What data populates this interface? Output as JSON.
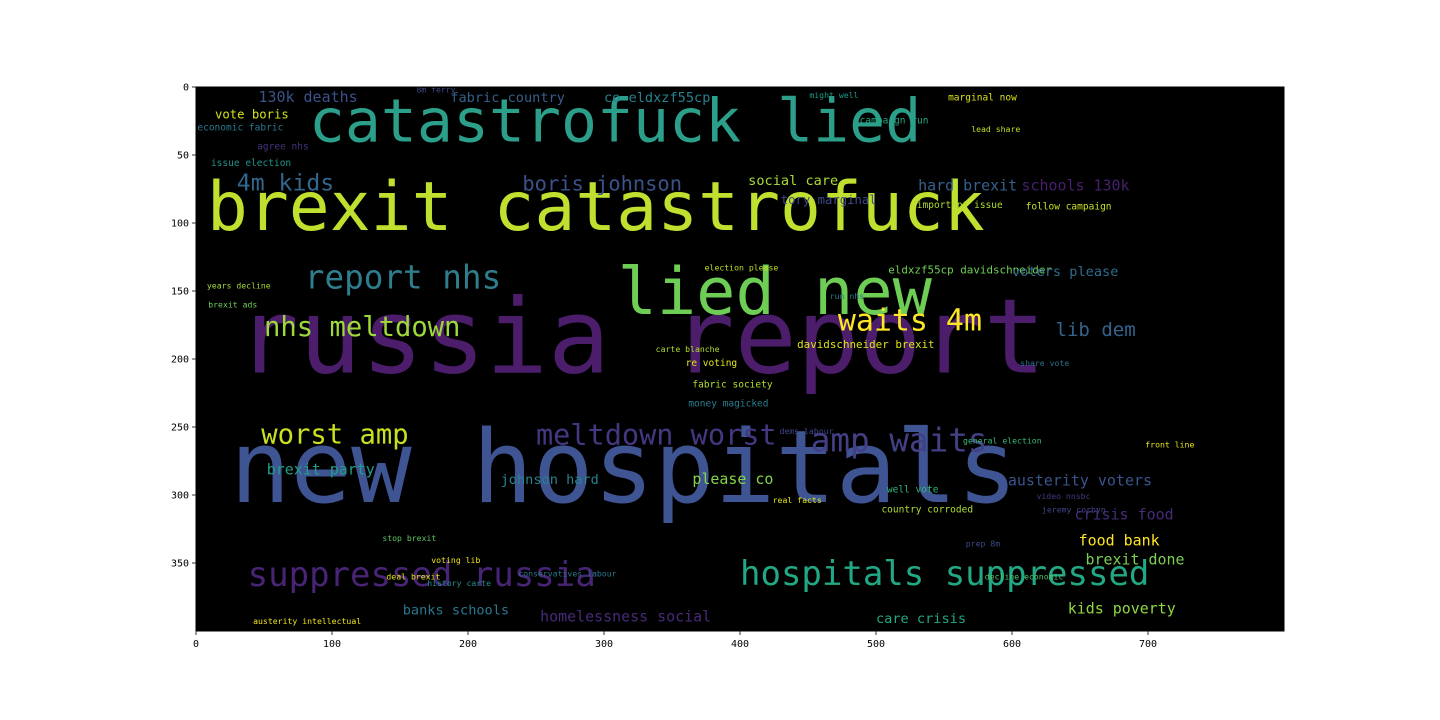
{
  "chart_data": {
    "type": "wordcloud",
    "title": "",
    "xlabel": "",
    "ylabel": "",
    "xlim": [
      0,
      800
    ],
    "ylim": [
      400,
      0
    ],
    "x_ticks": [
      0,
      100,
      200,
      300,
      400,
      500,
      600,
      700
    ],
    "y_ticks": [
      0,
      50,
      100,
      150,
      200,
      250,
      300,
      350
    ],
    "background": "#000000",
    "words": [
      {
        "text": "catastrofuck lied",
        "x": 83,
        "y": 40,
        "size": 44,
        "color": "#2c9f8b"
      },
      {
        "text": "brexit catastrofuck",
        "x": 8,
        "y": 105,
        "size": 50,
        "color": "#c0e02f"
      },
      {
        "text": "russia report",
        "x": 30,
        "y": 210,
        "size": 76,
        "color": "#4b1d6b"
      },
      {
        "text": "new hospitals",
        "x": 25,
        "y": 305,
        "size": 74,
        "color": "#3f5593"
      },
      {
        "text": "lied new",
        "x": 310,
        "y": 167,
        "size": 48,
        "color": "#6ecd55"
      },
      {
        "text": "4m kids",
        "x": 30,
        "y": 76,
        "size": 17,
        "color": "#31668d"
      },
      {
        "text": "report nhs",
        "x": 80,
        "y": 148,
        "size": 24,
        "color": "#2e7e8d"
      },
      {
        "text": "nhs meltdown",
        "x": 50,
        "y": 183,
        "size": 20,
        "color": "#9ed93a"
      },
      {
        "text": "waits 4m",
        "x": 472,
        "y": 179,
        "size": 22,
        "color": "#fde725"
      },
      {
        "text": "amp waits",
        "x": 452,
        "y": 268,
        "size": 24,
        "color": "#433f84"
      },
      {
        "text": "worst amp",
        "x": 48,
        "y": 262,
        "size": 20,
        "color": "#c9e020"
      },
      {
        "text": "meltdown worst",
        "x": 250,
        "y": 263,
        "size": 21,
        "color": "#453781"
      },
      {
        "text": "suppressed russia",
        "x": 38,
        "y": 367,
        "size": 25,
        "color": "#482475"
      },
      {
        "text": "hospitals suppressed",
        "x": 400,
        "y": 366,
        "size": 25,
        "color": "#22a884"
      },
      {
        "text": "boris johnson",
        "x": 240,
        "y": 76,
        "size": 15,
        "color": "#3b528b"
      },
      {
        "text": "hard brexit",
        "x": 531,
        "y": 76,
        "size": 11,
        "color": "#35608d"
      },
      {
        "text": "schools 130k",
        "x": 607,
        "y": 76,
        "size": 11,
        "color": "#481f70"
      },
      {
        "text": "social care",
        "x": 406,
        "y": 72,
        "size": 10,
        "color": "#a8db34"
      },
      {
        "text": "130k deaths",
        "x": 46,
        "y": 11,
        "size": 11,
        "color": "#3b528b"
      },
      {
        "text": "fabric country",
        "x": 187,
        "y": 11,
        "size": 10,
        "color": "#35608d"
      },
      {
        "text": "co eldxzf55cp",
        "x": 300,
        "y": 11,
        "size": 10,
        "color": "#26828e"
      },
      {
        "text": "vote boris",
        "x": 14,
        "y": 23,
        "size": 9,
        "color": "#d2e21b"
      },
      {
        "text": "economic fabric",
        "x": 1,
        "y": 32,
        "size": 7,
        "color": "#2a788e"
      },
      {
        "text": "issue election",
        "x": 11,
        "y": 58,
        "size": 7,
        "color": "#1f958b"
      },
      {
        "text": "agree nhs",
        "x": 45,
        "y": 46,
        "size": 7,
        "color": "#46327e"
      },
      {
        "text": "tory marginal",
        "x": 430,
        "y": 86,
        "size": 9,
        "color": "#3e4a89"
      },
      {
        "text": "important issue",
        "x": 530,
        "y": 89,
        "size": 7,
        "color": "#addc30"
      },
      {
        "text": "follow campaign",
        "x": 610,
        "y": 90,
        "size": 7,
        "color": "#c8e020"
      },
      {
        "text": "eldxzf55cp davidschneider",
        "x": 509,
        "y": 137,
        "size": 8,
        "color": "#70cf57"
      },
      {
        "text": "voters please",
        "x": 600,
        "y": 139,
        "size": 10,
        "color": "#2f6c8e"
      },
      {
        "text": "lib dem",
        "x": 632,
        "y": 183,
        "size": 14,
        "color": "#33638d"
      },
      {
        "text": "davidschneider brexit",
        "x": 442,
        "y": 192,
        "size": 8,
        "color": "#dde318"
      },
      {
        "text": "austerity voters",
        "x": 597,
        "y": 293,
        "size": 11,
        "color": "#3a548c"
      },
      {
        "text": "crisis food",
        "x": 646,
        "y": 318,
        "size": 11,
        "color": "#472c7a"
      },
      {
        "text": "food bank",
        "x": 649,
        "y": 337,
        "size": 11,
        "color": "#fde725"
      },
      {
        "text": "brexit done",
        "x": 654,
        "y": 351,
        "size": 11,
        "color": "#7ad151"
      },
      {
        "text": "kids poverty",
        "x": 641,
        "y": 387,
        "size": 11,
        "color": "#90d743"
      },
      {
        "text": "care crisis",
        "x": 500,
        "y": 394,
        "size": 10,
        "color": "#22a884"
      },
      {
        "text": "homelessness social",
        "x": 253,
        "y": 393,
        "size": 11,
        "color": "#472a7a"
      },
      {
        "text": "banks schools",
        "x": 152,
        "y": 388,
        "size": 10,
        "color": "#2a788e"
      },
      {
        "text": "brexit party",
        "x": 52,
        "y": 285,
        "size": 11,
        "color": "#1f9e89"
      },
      {
        "text": "johnson hard",
        "x": 224,
        "y": 292,
        "size": 10,
        "color": "#26828e"
      },
      {
        "text": "please co",
        "x": 365,
        "y": 292,
        "size": 11,
        "color": "#84d44b"
      },
      {
        "text": "fabric society",
        "x": 365,
        "y": 221,
        "size": 7,
        "color": "#b5de2b"
      },
      {
        "text": "money magicked",
        "x": 362,
        "y": 235,
        "size": 7,
        "color": "#287c8e"
      },
      {
        "text": "voting lib",
        "x": 173,
        "y": 350,
        "size": 6,
        "color": "#f1e51d"
      },
      {
        "text": "deal brexit",
        "x": 140,
        "y": 362,
        "size": 6,
        "color": "#e5e419"
      },
      {
        "text": "conservatives labour",
        "x": 237,
        "y": 360,
        "size": 6,
        "color": "#2a788e"
      },
      {
        "text": "decline economic",
        "x": 580,
        "y": 362,
        "size": 6,
        "color": "#52c569"
      },
      {
        "text": "years decline",
        "x": 8,
        "y": 148,
        "size": 6,
        "color": "#a2da37"
      },
      {
        "text": "election please",
        "x": 374,
        "y": 135,
        "size": 6,
        "color": "#c2df23"
      },
      {
        "text": "marginal now",
        "x": 553,
        "y": 10,
        "size": 7,
        "color": "#d8e219"
      },
      {
        "text": "campaign run",
        "x": 488,
        "y": 27,
        "size": 7,
        "color": "#22a884"
      },
      {
        "text": "lead share",
        "x": 570,
        "y": 33,
        "size": 6,
        "color": "#c0df25"
      },
      {
        "text": "run nhs",
        "x": 466,
        "y": 156,
        "size": 6,
        "color": "#2a788e"
      },
      {
        "text": "re voting",
        "x": 360,
        "y": 205,
        "size": 7,
        "color": "#e2e418"
      },
      {
        "text": "dems labour",
        "x": 429,
        "y": 255,
        "size": 6,
        "color": "#3f4889"
      },
      {
        "text": "general election",
        "x": 564,
        "y": 262,
        "size": 6,
        "color": "#38b977"
      },
      {
        "text": "country corroded",
        "x": 504,
        "y": 313,
        "size": 7,
        "color": "#addc30"
      },
      {
        "text": "well vote",
        "x": 508,
        "y": 298,
        "size": 7,
        "color": "#30b57a"
      },
      {
        "text": "prep 8m",
        "x": 566,
        "y": 338,
        "size": 6,
        "color": "#3e4989"
      },
      {
        "text": "jeremy corbyn",
        "x": 622,
        "y": 313,
        "size": 6,
        "color": "#414487"
      },
      {
        "text": "carte blanche",
        "x": 338,
        "y": 195,
        "size": 6,
        "color": "#b0dd2f"
      },
      {
        "text": "share vote",
        "x": 606,
        "y": 205,
        "size": 6,
        "color": "#2d718e"
      },
      {
        "text": "front line",
        "x": 698,
        "y": 265,
        "size": 6,
        "color": "#e7e419"
      },
      {
        "text": "brexit ads",
        "x": 9,
        "y": 162,
        "size": 6,
        "color": "#6ccd5a"
      },
      {
        "text": "real facts",
        "x": 424,
        "y": 306,
        "size": 6,
        "color": "#e0e318"
      },
      {
        "text": "stop brexit",
        "x": 137,
        "y": 334,
        "size": 6,
        "color": "#5cc863"
      },
      {
        "text": "history carte",
        "x": 170,
        "y": 367,
        "size": 6,
        "color": "#21918c"
      },
      {
        "text": "video nnsbc",
        "x": 618,
        "y": 303,
        "size": 6,
        "color": "#453781"
      },
      {
        "text": "austerity intellectual",
        "x": 42,
        "y": 395,
        "size": 6,
        "color": "#efe51c"
      },
      {
        "text": "might well",
        "x": 451,
        "y": 8,
        "size": 6,
        "color": "#1f998a"
      },
      {
        "text": "8m ferry",
        "x": 162,
        "y": 4,
        "size": 6,
        "color": "#3f4889"
      }
    ]
  }
}
